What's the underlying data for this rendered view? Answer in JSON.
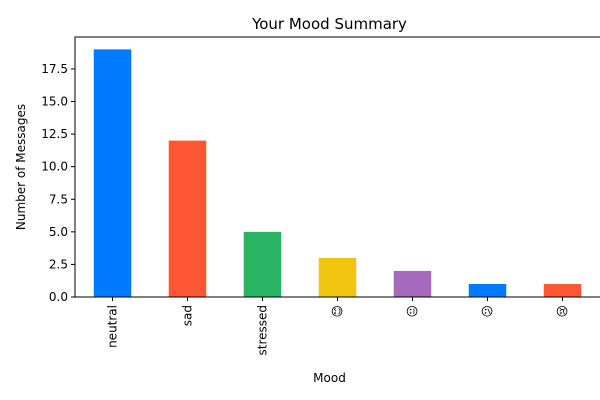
{
  "chart_data": {
    "type": "bar",
    "title": "Your Mood Summary",
    "xlabel": "Mood",
    "ylabel": "Number of Messages",
    "categories": [
      "neutral",
      "sad",
      "stressed",
      "😊",
      "😐",
      "😕",
      "😢"
    ],
    "values": [
      19,
      12,
      5,
      3,
      2,
      1,
      1
    ],
    "colors": [
      "#007bff",
      "#ff5733",
      "#28b463",
      "#f1c40f",
      "#a569bd",
      "#007bff",
      "#ff5733"
    ],
    "ylim": [
      0,
      19.95
    ],
    "yticks": [
      0.0,
      2.5,
      5.0,
      7.5,
      10.0,
      12.5,
      15.0,
      17.5
    ],
    "ytick_labels": [
      "0.0",
      "2.5",
      "5.0",
      "7.5",
      "10.0",
      "12.5",
      "15.0",
      "17.5"
    ],
    "grid": false,
    "legend": "none"
  }
}
